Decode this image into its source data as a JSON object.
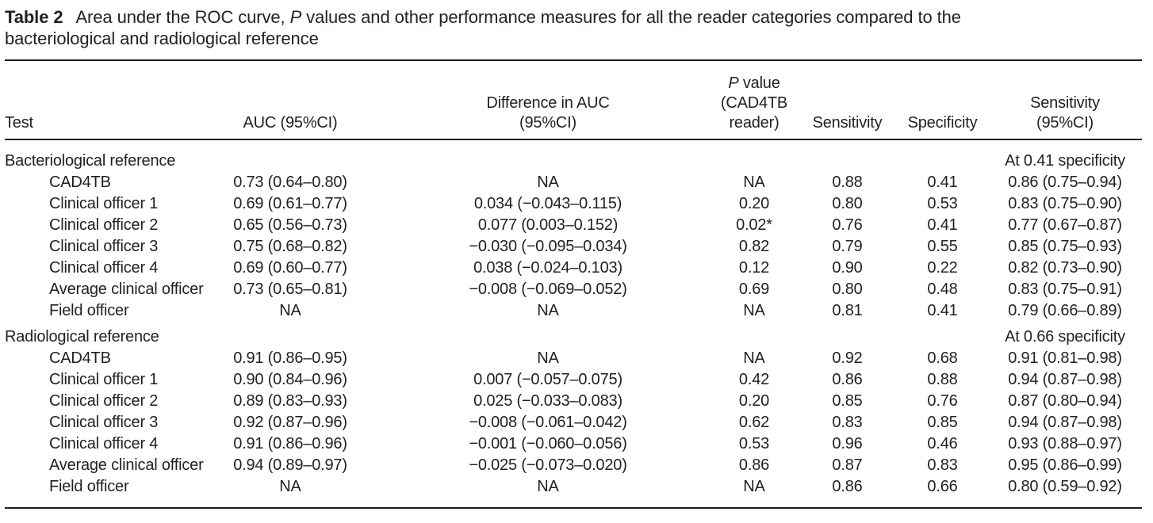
{
  "page": {
    "background": "#ffffff",
    "text_color": "#231f20",
    "rule_color": "#1b1b1b"
  },
  "title": {
    "label": "Table 2",
    "text_before_italic": "Area under the ROC curve, ",
    "text_italic": "P",
    "text_after_italic": " values and other performance measures for all the reader categories compared to the",
    "text_line2": "bacteriological and radiological reference"
  },
  "table": {
    "headers": {
      "test": "Test",
      "auc": "AUC (95%CI)",
      "diff_line1": "Difference in AUC",
      "diff_line2": "(95%CI)",
      "p_line1_italic": "P",
      "p_line1_rest": " value",
      "p_line2": "(CAD4TB",
      "p_line3": "reader)",
      "sensitivity": "Sensitivity",
      "specificity": "Specificity",
      "sens_ci_line1": "Sensitivity",
      "sens_ci_line2": "(95%CI)"
    },
    "sections": [
      {
        "label": "Bacteriological reference",
        "note": "At 0.41 specificity",
        "rows": [
          {
            "test": "CAD4TB",
            "auc": "0.73 (0.64–0.80)",
            "diff": "NA",
            "p": "NA",
            "sens": "0.88",
            "spec": "0.41",
            "sens_ci": "0.86 (0.75–0.94)"
          },
          {
            "test": "Clinical officer 1",
            "auc": "0.69 (0.61–0.77)",
            "diff": "0.034 (−0.043–0.115)",
            "p": "0.20",
            "sens": "0.80",
            "spec": "0.53",
            "sens_ci": "0.83 (0.75–0.90)"
          },
          {
            "test": "Clinical officer 2",
            "auc": "0.65 (0.56–0.73)",
            "diff": "0.077 (0.003–0.152)",
            "p": "0.02*",
            "sens": "0.76",
            "spec": "0.41",
            "sens_ci": "0.77 (0.67–0.87)"
          },
          {
            "test": "Clinical officer 3",
            "auc": "0.75 (0.68–0.82)",
            "diff": "−0.030 (−0.095–0.034)",
            "p": "0.82",
            "sens": "0.79",
            "spec": "0.55",
            "sens_ci": "0.85 (0.75–0.93)"
          },
          {
            "test": "Clinical officer 4",
            "auc": "0.69 (0.60–0.77)",
            "diff": "0.038 (−0.024–0.103)",
            "p": "0.12",
            "sens": "0.90",
            "spec": "0.22",
            "sens_ci": "0.82 (0.73–0.90)"
          },
          {
            "test": "Average clinical officer",
            "auc": "0.73 (0.65–0.81)",
            "diff": "−0.008 (−0.069–0.052)",
            "p": "0.69",
            "sens": "0.80",
            "spec": "0.48",
            "sens_ci": "0.83 (0.75–0.91)"
          },
          {
            "test": "Field officer",
            "auc": "NA",
            "diff": "NA",
            "p": "NA",
            "sens": "0.81",
            "spec": "0.41",
            "sens_ci": "0.79 (0.66–0.89)"
          }
        ]
      },
      {
        "label": "Radiological reference",
        "note": "At 0.66 specificity",
        "rows": [
          {
            "test": "CAD4TB",
            "auc": "0.91 (0.86–0.95)",
            "diff": "NA",
            "p": "NA",
            "sens": "0.92",
            "spec": "0.68",
            "sens_ci": "0.91 (0.81–0.98)"
          },
          {
            "test": "Clinical officer 1",
            "auc": "0.90 (0.84–0.96)",
            "diff": "0.007 (−0.057–0.075)",
            "p": "0.42",
            "sens": "0.86",
            "spec": "0.88",
            "sens_ci": "0.94 (0.87–0.98)"
          },
          {
            "test": "Clinical officer 2",
            "auc": "0.89 (0.83–0.93)",
            "diff": "0.025 (−0.033–0.083)",
            "p": "0.20",
            "sens": "0.85",
            "spec": "0.76",
            "sens_ci": "0.87 (0.80–0.94)"
          },
          {
            "test": "Clinical officer 3",
            "auc": "0.92 (0.87–0.96)",
            "diff": "−0.008 (−0.061–0.042)",
            "p": "0.62",
            "sens": "0.83",
            "spec": "0.85",
            "sens_ci": "0.94 (0.87–0.98)"
          },
          {
            "test": "Clinical officer 4",
            "auc": "0.91 (0.86–0.96)",
            "diff": "−0.001 (−0.060–0.056)",
            "p": "0.53",
            "sens": "0.96",
            "spec": "0.46",
            "sens_ci": "0.93 (0.88–0.97)"
          },
          {
            "test": "Average clinical officer",
            "auc": "0.94 (0.89–0.97)",
            "diff": "−0.025 (−0.073–0.020)",
            "p": "0.86",
            "sens": "0.87",
            "spec": "0.83",
            "sens_ci": "0.95 (0.86–0.99)"
          },
          {
            "test": "Field officer",
            "auc": "NA",
            "diff": "NA",
            "p": "NA",
            "sens": "0.86",
            "spec": "0.66",
            "sens_ci": "0.80 (0.59–0.92)"
          }
        ]
      }
    ]
  }
}
